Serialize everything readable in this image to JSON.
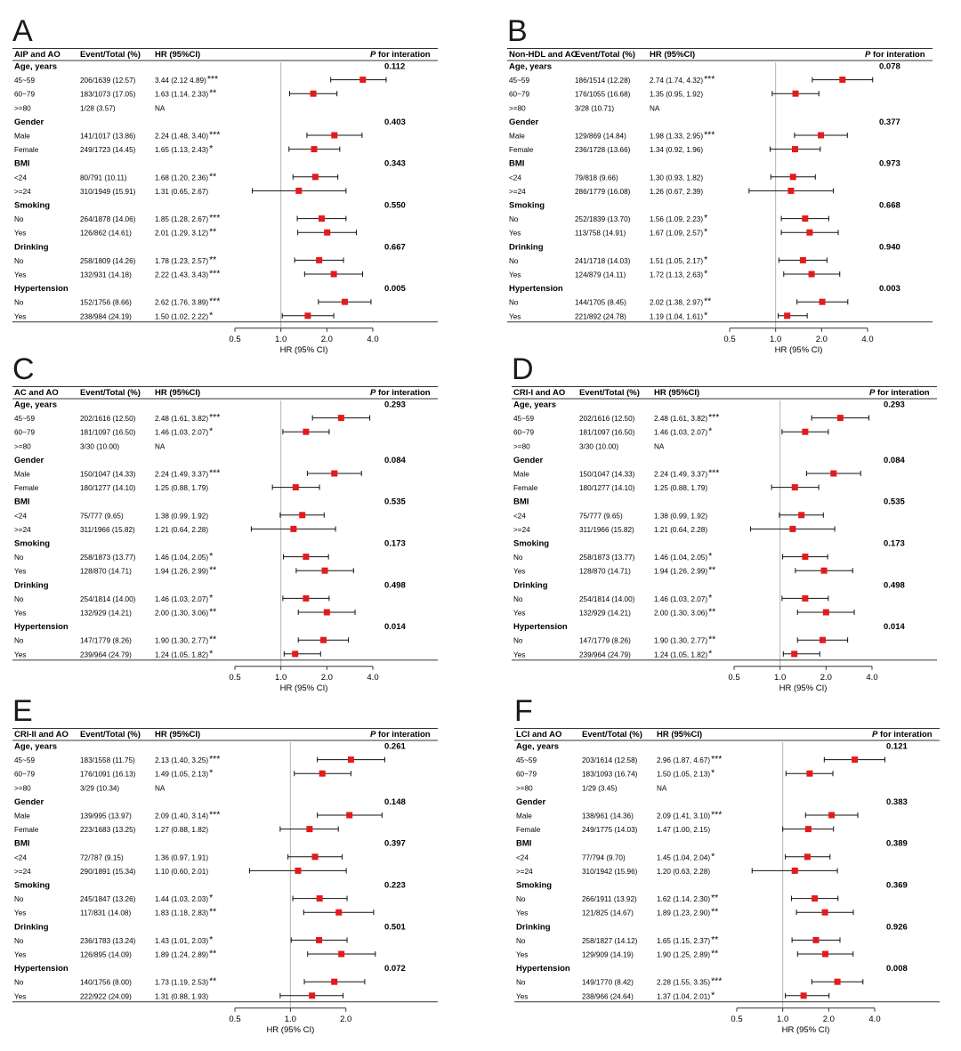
{
  "figure": {
    "row_labels": [
      "Age, years",
      "45~59",
      "60~79",
      ">=80",
      "Gender",
      "Male",
      "Female",
      "BMI",
      "<24",
      ">=24",
      "Smoking",
      "No",
      "Yes",
      "Drinking",
      "No",
      "Yes",
      "Hypertension",
      "No",
      "Yes"
    ],
    "col_event": "Event/Total (%)",
    "col_hr": "HR (95%CI)",
    "col_p_italic": "P",
    "col_p_rest": " for interation",
    "x_axis_label": "HR (95% CI)",
    "tick_labels": [
      "0.5",
      "1.0",
      "2.0",
      "4.0"
    ]
  },
  "chart_data": [
    {
      "type": "forest",
      "panel": "A",
      "title": "AIP and AO",
      "xscale": "log",
      "xlim": [
        0.5,
        4.0
      ],
      "reference": 1.0,
      "marker_color": "#e41a1c",
      "p_values": [
        "0.112",
        "0.403",
        "0.343",
        "0.550",
        "0.667",
        "0.005"
      ],
      "rows": [
        {
          "event": "206/1639 (12.57)",
          "hr_text": "3.44 (2.12 4.89)",
          "stars": "***",
          "hr": 3.44,
          "lo": 2.12,
          "hi": 4.89
        },
        {
          "event": "183/1073 (17.05)",
          "hr_text": "1.63 (1.14, 2.33)",
          "stars": "**",
          "hr": 1.63,
          "lo": 1.14,
          "hi": 2.33
        },
        {
          "event": "1/28 (3.57)",
          "hr_text": "NA",
          "stars": "",
          "hr": null,
          "lo": null,
          "hi": null
        },
        {
          "event": "141/1017 (13.86)",
          "hr_text": "2.24 (1.48, 3.40)",
          "stars": "***",
          "hr": 2.24,
          "lo": 1.48,
          "hi": 3.4
        },
        {
          "event": "249/1723 (14.45)",
          "hr_text": "1.65 (1.13, 2.43)",
          "stars": "*",
          "hr": 1.65,
          "lo": 1.13,
          "hi": 2.43
        },
        {
          "event": "80/791 (10.11)",
          "hr_text": "1.68 (1.20, 2.36)",
          "stars": "**",
          "hr": 1.68,
          "lo": 1.2,
          "hi": 2.36
        },
        {
          "event": "310/1949 (15.91)",
          "hr_text": "1.31 (0.65, 2.67)",
          "stars": "",
          "hr": 1.31,
          "lo": 0.65,
          "hi": 2.67
        },
        {
          "event": "264/1878 (14.06)",
          "hr_text": "1.85 (1.28, 2.67)",
          "stars": "***",
          "hr": 1.85,
          "lo": 1.28,
          "hi": 2.67
        },
        {
          "event": "126/862 (14.61)",
          "hr_text": "2.01 (1.29, 3.12)",
          "stars": "**",
          "hr": 2.01,
          "lo": 1.29,
          "hi": 3.12
        },
        {
          "event": "258/1809 (14.26)",
          "hr_text": "1.78 (1.23, 2.57)",
          "stars": "**",
          "hr": 1.78,
          "lo": 1.23,
          "hi": 2.57
        },
        {
          "event": "132/931 (14.18)",
          "hr_text": "2.22 (1.43, 3.43)",
          "stars": "***",
          "hr": 2.22,
          "lo": 1.43,
          "hi": 3.43
        },
        {
          "event": "152/1756 (8.66)",
          "hr_text": "2.62 (1.76, 3.89)",
          "stars": "***",
          "hr": 2.62,
          "lo": 1.76,
          "hi": 3.89
        },
        {
          "event": "238/984 (24.19)",
          "hr_text": "1.50 (1.02, 2.22)",
          "stars": "*",
          "hr": 1.5,
          "lo": 1.02,
          "hi": 2.22
        }
      ]
    },
    {
      "type": "forest",
      "panel": "B",
      "title": "Non-HDL and AO",
      "xscale": "log",
      "xlim": [
        0.5,
        4.0
      ],
      "reference": 1.0,
      "marker_color": "#e41a1c",
      "p_values": [
        "0.078",
        "0.377",
        "0.973",
        "0.668",
        "0.940",
        "0.003"
      ],
      "rows": [
        {
          "event": "186/1514 (12.28)",
          "hr_text": "2.74 (1.74, 4.32)",
          "stars": "***",
          "hr": 2.74,
          "lo": 1.74,
          "hi": 4.32
        },
        {
          "event": "176/1055 (16.68)",
          "hr_text": "1.35 (0.95, 1.92)",
          "stars": "",
          "hr": 1.35,
          "lo": 0.95,
          "hi": 1.92
        },
        {
          "event": "3/28 (10.71)",
          "hr_text": "NA",
          "stars": "",
          "hr": null,
          "lo": null,
          "hi": null
        },
        {
          "event": "129/869 (14.84)",
          "hr_text": "1.98 (1.33, 2.95)",
          "stars": "***",
          "hr": 1.98,
          "lo": 1.33,
          "hi": 2.95
        },
        {
          "event": "236/1728 (13.66)",
          "hr_text": "1.34 (0.92, 1.96)",
          "stars": "",
          "hr": 1.34,
          "lo": 0.92,
          "hi": 1.96
        },
        {
          "event": "79/818 (9.66)",
          "hr_text": "1.30 (0.93, 1.82)",
          "stars": "",
          "hr": 1.3,
          "lo": 0.93,
          "hi": 1.82
        },
        {
          "event": "286/1779 (16.08)",
          "hr_text": "1.26 (0.67, 2.39)",
          "stars": "",
          "hr": 1.26,
          "lo": 0.67,
          "hi": 2.39
        },
        {
          "event": "252/1839 (13.70)",
          "hr_text": "1.56 (1.09, 2.23)",
          "stars": "*",
          "hr": 1.56,
          "lo": 1.09,
          "hi": 2.23
        },
        {
          "event": "113/758 (14.91)",
          "hr_text": "1.67 (1.09, 2.57)",
          "stars": "*",
          "hr": 1.67,
          "lo": 1.09,
          "hi": 2.57
        },
        {
          "event": "241/1718 (14.03)",
          "hr_text": "1.51 (1.05, 2.17)",
          "stars": "*",
          "hr": 1.51,
          "lo": 1.05,
          "hi": 2.17
        },
        {
          "event": "124/879 (14.11)",
          "hr_text": "1.72 (1.13, 2.63)",
          "stars": "*",
          "hr": 1.72,
          "lo": 1.13,
          "hi": 2.63
        },
        {
          "event": "144/1705 (8.45)",
          "hr_text": "2.02 (1.38, 2.97)",
          "stars": "**",
          "hr": 2.02,
          "lo": 1.38,
          "hi": 2.97
        },
        {
          "event": "221/892 (24.78)",
          "hr_text": "1.19 (1.04, 1.61)",
          "stars": "*",
          "hr": 1.19,
          "lo": 1.04,
          "hi": 1.61
        }
      ]
    },
    {
      "type": "forest",
      "panel": "C",
      "title": "AC and AO",
      "xscale": "log",
      "xlim": [
        0.5,
        4.0
      ],
      "reference": 1.0,
      "marker_color": "#e41a1c",
      "p_values": [
        "0.293",
        "0.084",
        "0.535",
        "0.173",
        "0.498",
        "0.014"
      ],
      "rows": [
        {
          "event": "202/1616 (12.50)",
          "hr_text": "2.48 (1.61, 3.82)",
          "stars": "***",
          "hr": 2.48,
          "lo": 1.61,
          "hi": 3.82
        },
        {
          "event": "181/1097 (16.50)",
          "hr_text": "1.46 (1.03, 2.07)",
          "stars": "*",
          "hr": 1.46,
          "lo": 1.03,
          "hi": 2.07
        },
        {
          "event": "3/30 (10.00)",
          "hr_text": "NA",
          "stars": "",
          "hr": null,
          "lo": null,
          "hi": null
        },
        {
          "event": "150/1047 (14.33)",
          "hr_text": "2.24 (1.49, 3.37)",
          "stars": "***",
          "hr": 2.24,
          "lo": 1.49,
          "hi": 3.37
        },
        {
          "event": "180/1277 (14.10)",
          "hr_text": "1.25 (0.88, 1.79)",
          "stars": "",
          "hr": 1.25,
          "lo": 0.88,
          "hi": 1.79
        },
        {
          "event": "75/777 (9.65)",
          "hr_text": "1.38 (0.99, 1.92)",
          "stars": "",
          "hr": 1.38,
          "lo": 0.99,
          "hi": 1.92
        },
        {
          "event": "311/1966 (15.82)",
          "hr_text": "1.21 (0.64, 2.28)",
          "stars": "",
          "hr": 1.21,
          "lo": 0.64,
          "hi": 2.28
        },
        {
          "event": "258/1873 (13.77)",
          "hr_text": "1.46 (1.04, 2.05)",
          "stars": "*",
          "hr": 1.46,
          "lo": 1.04,
          "hi": 2.05
        },
        {
          "event": "128/870 (14.71)",
          "hr_text": "1.94 (1.26, 2.99)",
          "stars": "**",
          "hr": 1.94,
          "lo": 1.26,
          "hi": 2.99
        },
        {
          "event": "254/1814 (14.00)",
          "hr_text": "1.46 (1.03, 2.07)",
          "stars": "*",
          "hr": 1.46,
          "lo": 1.03,
          "hi": 2.07
        },
        {
          "event": "132/929 (14.21)",
          "hr_text": "2.00 (1.30, 3.06)",
          "stars": "**",
          "hr": 2.0,
          "lo": 1.3,
          "hi": 3.06
        },
        {
          "event": "147/1779 (8.26)",
          "hr_text": "1.90 (1.30, 2.77)",
          "stars": "**",
          "hr": 1.9,
          "lo": 1.3,
          "hi": 2.77
        },
        {
          "event": "239/964 (24.79)",
          "hr_text": "1.24 (1.05, 1.82)",
          "stars": "*",
          "hr": 1.24,
          "lo": 1.05,
          "hi": 1.82
        }
      ]
    },
    {
      "type": "forest",
      "panel": "D",
      "title": "CRI-I and AO",
      "xscale": "log",
      "xlim": [
        0.5,
        4.0
      ],
      "reference": 1.0,
      "marker_color": "#e41a1c",
      "p_values": [
        "0.293",
        "0.084",
        "0.535",
        "0.173",
        "0.498",
        "0.014"
      ],
      "rows": [
        {
          "event": "202/1616 (12.50)",
          "hr_text": "2.48 (1.61, 3.82)",
          "stars": "***",
          "hr": 2.48,
          "lo": 1.61,
          "hi": 3.82
        },
        {
          "event": "181/1097 (16.50)",
          "hr_text": "1.46 (1.03, 2.07)",
          "stars": "*",
          "hr": 1.46,
          "lo": 1.03,
          "hi": 2.07
        },
        {
          "event": "3/30 (10.00)",
          "hr_text": "NA",
          "stars": "",
          "hr": null,
          "lo": null,
          "hi": null
        },
        {
          "event": "150/1047 (14.33)",
          "hr_text": "2.24 (1.49, 3.37)",
          "stars": "***",
          "hr": 2.24,
          "lo": 1.49,
          "hi": 3.37
        },
        {
          "event": "180/1277 (14.10)",
          "hr_text": "1.25 (0.88, 1.79)",
          "stars": "",
          "hr": 1.25,
          "lo": 0.88,
          "hi": 1.79
        },
        {
          "event": "75/777 (9.65)",
          "hr_text": "1.38 (0.99, 1.92)",
          "stars": "",
          "hr": 1.38,
          "lo": 0.99,
          "hi": 1.92
        },
        {
          "event": "311/1966 (15.82)",
          "hr_text": "1.21 (0.64, 2.28)",
          "stars": "",
          "hr": 1.21,
          "lo": 0.64,
          "hi": 2.28
        },
        {
          "event": "258/1873 (13.77)",
          "hr_text": "1.46 (1.04, 2.05)",
          "stars": "*",
          "hr": 1.46,
          "lo": 1.04,
          "hi": 2.05
        },
        {
          "event": "128/870 (14.71)",
          "hr_text": "1.94 (1.26, 2.99)",
          "stars": "**",
          "hr": 1.94,
          "lo": 1.26,
          "hi": 2.99
        },
        {
          "event": "254/1814 (14.00)",
          "hr_text": "1.46 (1.03, 2.07)",
          "stars": "*",
          "hr": 1.46,
          "lo": 1.03,
          "hi": 2.07
        },
        {
          "event": "132/929 (14.21)",
          "hr_text": "2.00 (1.30, 3.06)",
          "stars": "**",
          "hr": 2.0,
          "lo": 1.3,
          "hi": 3.06
        },
        {
          "event": "147/1779 (8.26)",
          "hr_text": "1.90 (1.30, 2.77)",
          "stars": "**",
          "hr": 1.9,
          "lo": 1.3,
          "hi": 2.77
        },
        {
          "event": "239/964 (24.79)",
          "hr_text": "1.24 (1.05, 1.82)",
          "stars": "*",
          "hr": 1.24,
          "lo": 1.05,
          "hi": 1.82
        }
      ]
    },
    {
      "type": "forest",
      "panel": "E",
      "title": "CRI-II and AO",
      "xscale": "log",
      "xlim": [
        0.5,
        2.8
      ],
      "reference": 1.0,
      "marker_color": "#e41a1c",
      "tick_labels": [
        "0.5",
        "1.0",
        "2.0"
      ],
      "p_values": [
        "0.261",
        "0.148",
        "0.397",
        "0.223",
        "0.501",
        "0.072"
      ],
      "rows": [
        {
          "event": "183/1558 (11.75)",
          "hr_text": "2.13 (1.40, 3.25)",
          "stars": "***",
          "hr": 2.13,
          "lo": 1.4,
          "hi": 3.25
        },
        {
          "event": "176/1091 (16.13)",
          "hr_text": "1.49 (1.05, 2.13)",
          "stars": "*",
          "hr": 1.49,
          "lo": 1.05,
          "hi": 2.13
        },
        {
          "event": "3/29 (10.34)",
          "hr_text": "NA",
          "stars": "",
          "hr": null,
          "lo": null,
          "hi": null
        },
        {
          "event": "139/995 (13.97)",
          "hr_text": "2.09 (1.40, 3.14)",
          "stars": "***",
          "hr": 2.09,
          "lo": 1.4,
          "hi": 3.14
        },
        {
          "event": "223/1683 (13.25)",
          "hr_text": "1.27 (0.88, 1.82)",
          "stars": "",
          "hr": 1.27,
          "lo": 0.88,
          "hi": 1.82
        },
        {
          "event": "72/787 (9.15)",
          "hr_text": "1.36 (0.97, 1.91)",
          "stars": "",
          "hr": 1.36,
          "lo": 0.97,
          "hi": 1.91
        },
        {
          "event": "290/1891 (15.34)",
          "hr_text": "1.10 (0.60, 2.01)",
          "stars": "",
          "hr": 1.1,
          "lo": 0.6,
          "hi": 2.01
        },
        {
          "event": "245/1847 (13.26)",
          "hr_text": "1.44 (1.03, 2.03)",
          "stars": "*",
          "hr": 1.44,
          "lo": 1.03,
          "hi": 2.03
        },
        {
          "event": "117/831 (14.08)",
          "hr_text": "1.83 (1.18, 2.83)",
          "stars": "**",
          "hr": 1.83,
          "lo": 1.18,
          "hi": 2.83
        },
        {
          "event": "236/1783 (13.24)",
          "hr_text": "1.43 (1.01, 2.03)",
          "stars": "*",
          "hr": 1.43,
          "lo": 1.01,
          "hi": 2.03
        },
        {
          "event": "126/895 (14.09)",
          "hr_text": "1.89 (1.24, 2.89)",
          "stars": "**",
          "hr": 1.89,
          "lo": 1.24,
          "hi": 2.89
        },
        {
          "event": "140/1756 (8.00)",
          "hr_text": "1.73 (1.19, 2.53)",
          "stars": "**",
          "hr": 1.73,
          "lo": 1.19,
          "hi": 2.53
        },
        {
          "event": "222/922 (24.09)",
          "hr_text": "1.31 (0.88, 1.93)",
          "stars": "",
          "hr": 1.31,
          "lo": 0.88,
          "hi": 1.93
        }
      ]
    },
    {
      "type": "forest",
      "panel": "F",
      "title": "LCI and AO",
      "xscale": "log",
      "xlim": [
        0.5,
        4.0
      ],
      "reference": 1.0,
      "marker_color": "#e41a1c",
      "p_values": [
        "0.121",
        "0.383",
        "0.389",
        "0.369",
        "0.926",
        "0.008"
      ],
      "rows": [
        {
          "event": "203/1614 (12.58)",
          "hr_text": "2.96 (1.87, 4.67)",
          "stars": "***",
          "hr": 2.96,
          "lo": 1.87,
          "hi": 4.67
        },
        {
          "event": "183/1093 (16.74)",
          "hr_text": "1.50 (1.05, 2.13)",
          "stars": "*",
          "hr": 1.5,
          "lo": 1.05,
          "hi": 2.13
        },
        {
          "event": "1/29 (3.45)",
          "hr_text": "NA",
          "stars": "",
          "hr": null,
          "lo": null,
          "hi": null
        },
        {
          "event": "138/961 (14.36)",
          "hr_text": "2.09 (1.41, 3.10)",
          "stars": "***",
          "hr": 2.09,
          "lo": 1.41,
          "hi": 3.1
        },
        {
          "event": "249/1775 (14.03)",
          "hr_text": "1.47 (1.00, 2.15)",
          "stars": "",
          "hr": 1.47,
          "lo": 1.0,
          "hi": 2.15
        },
        {
          "event": "77/794 (9.70)",
          "hr_text": "1.45 (1.04, 2.04)",
          "stars": "*",
          "hr": 1.45,
          "lo": 1.04,
          "hi": 2.04
        },
        {
          "event": "310/1942 (15.96)",
          "hr_text": "1.20 (0.63, 2.28)",
          "stars": "",
          "hr": 1.2,
          "lo": 0.63,
          "hi": 2.28
        },
        {
          "event": "266/1911 (13.92)",
          "hr_text": "1.62 (1.14, 2.30)",
          "stars": "**",
          "hr": 1.62,
          "lo": 1.14,
          "hi": 2.3
        },
        {
          "event": "121/825 (14.67)",
          "hr_text": "1.89 (1.23, 2.90)",
          "stars": "**",
          "hr": 1.89,
          "lo": 1.23,
          "hi": 2.9
        },
        {
          "event": "258/1827 (14.12)",
          "hr_text": "1.65 (1.15, 2.37)",
          "stars": "**",
          "hr": 1.65,
          "lo": 1.15,
          "hi": 2.37
        },
        {
          "event": "129/909 (14.19)",
          "hr_text": "1.90 (1.25, 2.89)",
          "stars": "**",
          "hr": 1.9,
          "lo": 1.25,
          "hi": 2.89
        },
        {
          "event": "149/1770 (8.42)",
          "hr_text": "2.28 (1.55, 3.35)",
          "stars": "***",
          "hr": 2.28,
          "lo": 1.55,
          "hi": 3.35
        },
        {
          "event": "238/966 (24.64)",
          "hr_text": "1.37 (1.04, 2.01)",
          "stars": "*",
          "hr": 1.37,
          "lo": 1.04,
          "hi": 2.01
        }
      ]
    }
  ]
}
